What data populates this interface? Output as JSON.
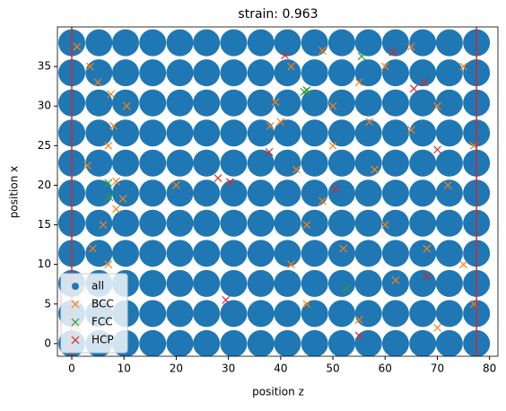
{
  "chart_data": {
    "type": "scatter",
    "title": "strain: 0.963",
    "xlabel": "position z",
    "ylabel": "position x",
    "xlim": [
      -2.75,
      81.6
    ],
    "ylim": [
      -1.6,
      40
    ],
    "xticks": [
      0,
      10,
      20,
      30,
      40,
      50,
      60,
      70,
      80
    ],
    "yticks": [
      0,
      5,
      10,
      15,
      20,
      25,
      30,
      35
    ],
    "vlines": [
      0,
      77.5
    ],
    "vline_color": "#d62728",
    "legend": "lower left",
    "series": [
      {
        "name": "all",
        "color": "#1f77b4",
        "marker": "o",
        "x": [
          0,
          5.2,
          10.3,
          15.5,
          20.7,
          25.8,
          31,
          36.2,
          41.3,
          46.5,
          51.7,
          56.8,
          62,
          67.2,
          72.3,
          77.5,
          0,
          5.2,
          10.3,
          15.5,
          20.7,
          25.8,
          31,
          36.2,
          41.3,
          46.5,
          51.7,
          56.8,
          62,
          67.2,
          72.3,
          77.5,
          0,
          5.2,
          10.3,
          15.5,
          20.7,
          25.8,
          31,
          36.2,
          41.3,
          46.5,
          51.7,
          56.8,
          62,
          67.2,
          72.3,
          77.5,
          0,
          5.2,
          10.3,
          15.5,
          20.7,
          25.8,
          31,
          36.2,
          41.3,
          46.5,
          51.7,
          56.8,
          62,
          67.2,
          72.3,
          77.5,
          0,
          5.2,
          10.3,
          15.5,
          20.7,
          25.8,
          31,
          36.2,
          41.3,
          46.5,
          51.7,
          56.8,
          62,
          67.2,
          72.3,
          77.5,
          0,
          5.2,
          10.3,
          15.5,
          20.7,
          25.8,
          31,
          36.2,
          41.3,
          46.5,
          51.7,
          56.8,
          62,
          67.2,
          72.3,
          77.5,
          0,
          5.2,
          10.3,
          15.5,
          20.7,
          25.8,
          31,
          36.2,
          41.3,
          46.5,
          51.7,
          56.8,
          62,
          67.2,
          72.3,
          77.5,
          0,
          5.2,
          10.3,
          15.5,
          20.7,
          25.8,
          31,
          36.2,
          41.3,
          46.5,
          51.7,
          56.8,
          62,
          67.2,
          72.3,
          77.5,
          0,
          5.2,
          10.3,
          15.5,
          20.7,
          25.8,
          31,
          36.2,
          41.3,
          46.5,
          51.7,
          56.8,
          62,
          67.2,
          72.3,
          77.5,
          0,
          5.2,
          10.3,
          15.5,
          20.7,
          25.8,
          31,
          36.2,
          41.3,
          46.5,
          51.7,
          56.8,
          62,
          67.2,
          72.3,
          77.5,
          0,
          5.2,
          10.3,
          15.5,
          20.7,
          25.8,
          31,
          36.2,
          41.3,
          46.5,
          51.7,
          56.8,
          62,
          67.2,
          72.3,
          77.5
        ],
        "values": [
          0,
          0,
          0,
          0,
          0,
          0,
          0,
          0,
          0,
          0,
          0,
          0,
          0,
          0,
          0,
          0,
          3.8,
          3.8,
          3.8,
          3.8,
          3.8,
          3.8,
          3.8,
          3.8,
          3.8,
          3.8,
          3.8,
          3.8,
          3.8,
          3.8,
          3.8,
          3.8,
          7.6,
          7.6,
          7.6,
          7.6,
          7.6,
          7.6,
          7.6,
          7.6,
          7.6,
          7.6,
          7.6,
          7.6,
          7.6,
          7.6,
          7.6,
          7.6,
          11.4,
          11.4,
          11.4,
          11.4,
          11.4,
          11.4,
          11.4,
          11.4,
          11.4,
          11.4,
          11.4,
          11.4,
          11.4,
          11.4,
          11.4,
          11.4,
          15.2,
          15.2,
          15.2,
          15.2,
          15.2,
          15.2,
          15.2,
          15.2,
          15.2,
          15.2,
          15.2,
          15.2,
          15.2,
          15.2,
          15.2,
          15.2,
          19,
          19,
          19,
          19,
          19,
          19,
          19,
          19,
          19,
          19,
          19,
          19,
          19,
          19,
          19,
          19,
          22.8,
          22.8,
          22.8,
          22.8,
          22.8,
          22.8,
          22.8,
          22.8,
          22.8,
          22.8,
          22.8,
          22.8,
          22.8,
          22.8,
          22.8,
          22.8,
          26.6,
          26.6,
          26.6,
          26.6,
          26.6,
          26.6,
          26.6,
          26.6,
          26.6,
          26.6,
          26.6,
          26.6,
          26.6,
          26.6,
          26.6,
          26.6,
          30.4,
          30.4,
          30.4,
          30.4,
          30.4,
          30.4,
          30.4,
          30.4,
          30.4,
          30.4,
          30.4,
          30.4,
          30.4,
          30.4,
          30.4,
          30.4,
          34.2,
          34.2,
          34.2,
          34.2,
          34.2,
          34.2,
          34.2,
          34.2,
          34.2,
          34.2,
          34.2,
          34.2,
          34.2,
          34.2,
          34.2,
          34.2,
          38,
          38,
          38,
          38,
          38,
          38,
          38,
          38,
          38,
          38,
          38,
          38,
          38,
          38,
          38,
          38
        ]
      },
      {
        "name": "BCC",
        "color": "#ff7f0e",
        "marker": "x",
        "x": [
          1,
          3.5,
          5,
          7.5,
          10.5,
          8,
          7,
          3,
          8.5,
          9.8,
          8.5,
          6,
          4,
          7,
          2,
          4.5,
          1,
          5,
          20,
          38,
          39,
          40,
          42,
          45,
          48,
          50,
          55,
          60,
          65,
          70,
          75,
          43,
          50,
          58,
          65,
          72,
          77,
          45,
          52,
          60,
          68,
          75,
          45,
          55,
          62,
          70,
          77,
          42,
          48,
          57
        ],
        "values": [
          37.5,
          35,
          33,
          31.5,
          30,
          27.5,
          25,
          22.5,
          20.5,
          18.3,
          17,
          15,
          12,
          10,
          7,
          5,
          2,
          0.5,
          20,
          27.5,
          30.5,
          28,
          35,
          32,
          37,
          30,
          33,
          35,
          37.5,
          30,
          35,
          22,
          25,
          22,
          27,
          20,
          25,
          15,
          12,
          15,
          12,
          10,
          5,
          3,
          8,
          2,
          5,
          10,
          18,
          28
        ]
      },
      {
        "name": "FCC",
        "color": "#2ca02c",
        "marker": "x",
        "x": [
          7,
          7.2,
          45,
          55.5,
          52.5,
          44.5
        ],
        "values": [
          20.3,
          18.5,
          32,
          36.3,
          7,
          31.8
        ]
      },
      {
        "name": "HCP",
        "color": "#d62728",
        "marker": "x",
        "x": [
          40.8,
          61.5,
          67.5,
          65.5,
          28,
          30.3,
          37.8,
          29.5,
          55,
          50.5,
          70,
          68
        ],
        "values": [
          36.4,
          36.8,
          33,
          32.2,
          20.9,
          20.4,
          24.2,
          5.5,
          1,
          19.5,
          24.5,
          8.5
        ]
      }
    ]
  }
}
